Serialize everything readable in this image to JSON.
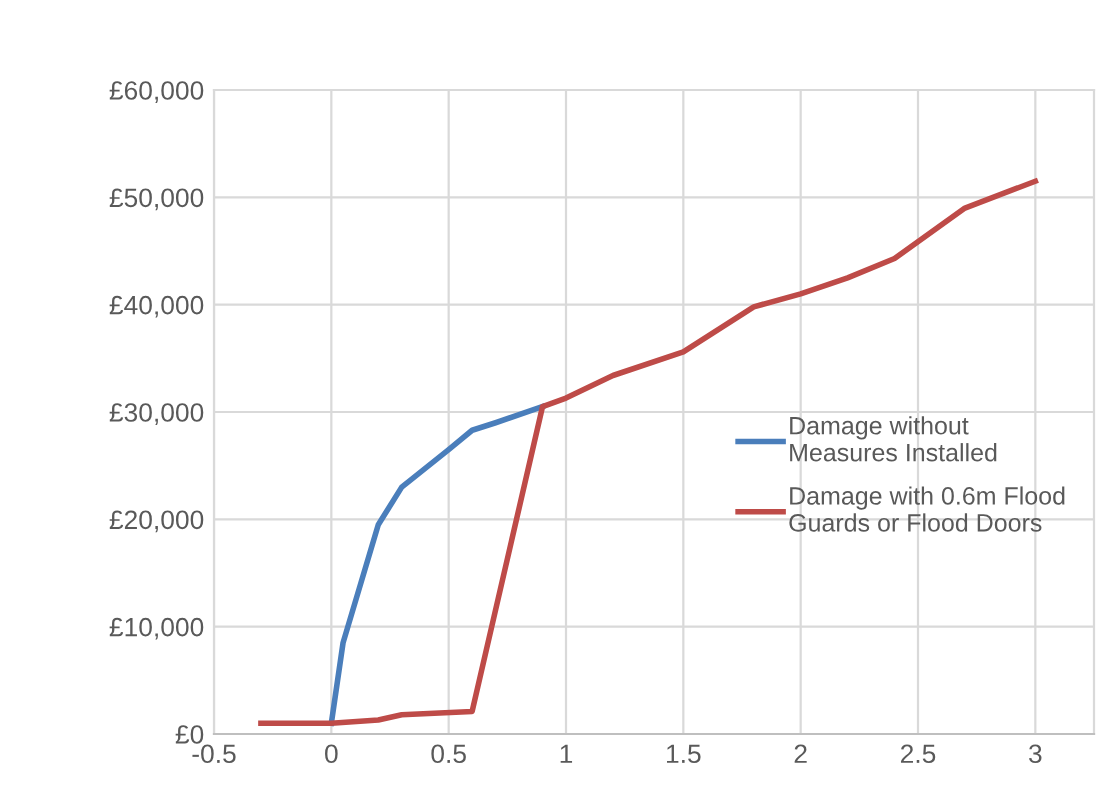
{
  "chart_data": {
    "type": "line",
    "xlim": [
      -0.5,
      3.25
    ],
    "xticks": [
      -0.5,
      0,
      0.5,
      1,
      1.5,
      2,
      2.5,
      3
    ],
    "ylim": [
      0,
      60000
    ],
    "yticks": [
      {
        "value": 0,
        "label": "£0"
      },
      {
        "value": 10000,
        "label": "£10,000"
      },
      {
        "value": 20000,
        "label": "£20,000"
      },
      {
        "value": 30000,
        "label": "£30,000"
      },
      {
        "value": 40000,
        "label": "£40,000"
      },
      {
        "value": 50000,
        "label": "£50,000"
      },
      {
        "value": 60000,
        "label": "£60,000"
      }
    ],
    "grid": true,
    "legend": "right",
    "marker": "none",
    "line_style": "solid",
    "series": [
      {
        "name": "Damage without Measures Installed",
        "color": "#4a7ebb",
        "x": [
          0,
          0.05,
          0.2,
          0.3,
          0.5,
          0.6,
          0.7,
          0.9
        ],
        "values": [
          1000,
          8500,
          19500,
          23000,
          26500,
          28300,
          29000,
          30500
        ]
      },
      {
        "name": "Damage with 0.6m Flood Guards or Flood Doors",
        "color": "#be4b48",
        "x": [
          -0.3,
          0,
          0.2,
          0.3,
          0.6,
          0.9,
          1,
          1.2,
          1.5,
          1.8,
          2,
          2.2,
          2.4,
          2.7,
          3
        ],
        "values": [
          1000,
          1000,
          1300,
          1800,
          2100,
          30500,
          31300,
          33400,
          35600,
          39800,
          41000,
          42500,
          44300,
          49000,
          51500
        ]
      }
    ]
  }
}
